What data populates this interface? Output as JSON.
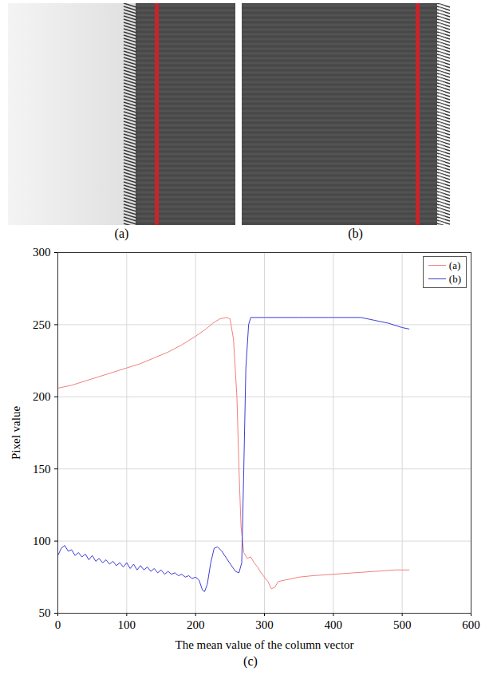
{
  "panels": [
    {
      "type": "image",
      "label": "(a)"
    },
    {
      "type": "image",
      "label": "(b)"
    }
  ],
  "chart_data": {
    "type": "line",
    "panel_label": "(c)",
    "x_label": "The mean value of the column vector",
    "y_label": "Pixel value",
    "xlim": [
      0,
      600
    ],
    "xticks": [
      0,
      100,
      200,
      300,
      400,
      500,
      600
    ],
    "ylim": [
      50,
      300
    ],
    "yticks": [
      50,
      100,
      150,
      200,
      250,
      300
    ],
    "grid": true,
    "legend": "top-right",
    "series": [
      {
        "name": "(a)",
        "color": "#f07f7f",
        "x": [
          0,
          20,
          40,
          60,
          80,
          100,
          120,
          140,
          160,
          180,
          200,
          215,
          225,
          235,
          245,
          250,
          255,
          260,
          263,
          266,
          270,
          275,
          280,
          285,
          290,
          295,
          300,
          305,
          310,
          315,
          320,
          330,
          350,
          370,
          400,
          430,
          460,
          490,
          510
        ],
        "values": [
          206,
          208,
          211,
          214,
          217,
          220,
          223,
          227,
          231,
          236,
          242,
          247,
          251,
          254,
          255,
          254,
          240,
          200,
          150,
          110,
          92,
          88,
          89,
          85,
          82,
          78,
          75,
          72,
          67,
          68,
          72,
          73,
          75,
          76,
          77,
          78,
          79,
          80,
          80
        ]
      },
      {
        "name": "(b)",
        "color": "#3c3cd8",
        "x": [
          0,
          5,
          10,
          15,
          20,
          25,
          30,
          35,
          40,
          45,
          50,
          55,
          60,
          65,
          70,
          75,
          80,
          85,
          90,
          95,
          100,
          105,
          110,
          115,
          120,
          125,
          130,
          135,
          140,
          145,
          150,
          155,
          160,
          165,
          170,
          175,
          180,
          185,
          190,
          195,
          200,
          205,
          210,
          213,
          217,
          222,
          227,
          232,
          238,
          245,
          252,
          258,
          263,
          267,
          270,
          273,
          277,
          280,
          300,
          350,
          400,
          440,
          460,
          480,
          500,
          510
        ],
        "values": [
          90,
          95,
          97,
          93,
          94,
          90,
          92,
          89,
          91,
          87,
          90,
          86,
          88,
          85,
          87,
          84,
          86,
          83,
          85,
          82,
          85,
          81,
          84,
          80,
          83,
          80,
          82,
          79,
          81,
          78,
          80,
          77,
          79,
          77,
          78,
          76,
          77,
          75,
          76,
          74,
          75,
          73,
          66,
          65,
          70,
          85,
          95,
          96,
          93,
          88,
          83,
          79,
          78,
          85,
          150,
          220,
          250,
          255,
          255,
          255,
          255,
          255,
          253,
          251,
          248,
          247
        ]
      }
    ]
  }
}
